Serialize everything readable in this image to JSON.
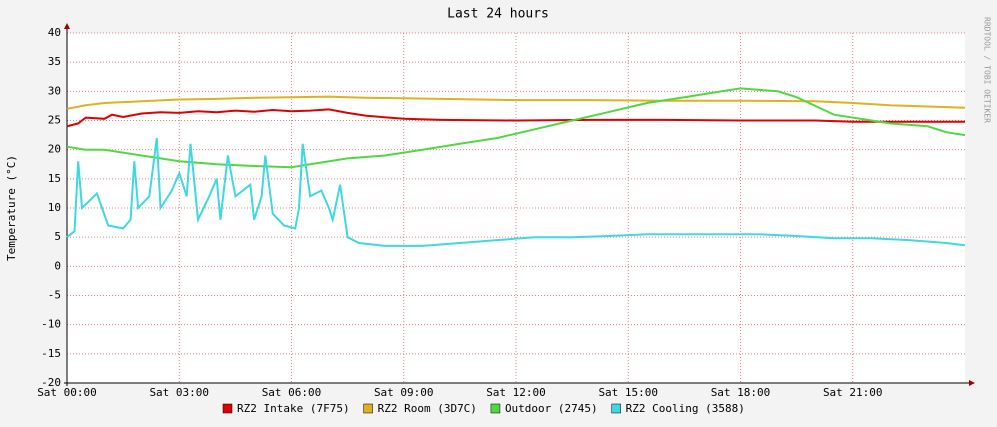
{
  "chart_data": {
    "type": "line",
    "title": "Last 24 hours",
    "y_label": "Temperature (°C)",
    "side_text": "RRDTOOL / TOBI OETIKER",
    "xlim": [
      0,
      24
    ],
    "ylim": [
      -20,
      40
    ],
    "xticks": [
      {
        "value": 0,
        "label": "Sat 00:00"
      },
      {
        "value": 3,
        "label": "Sat 03:00"
      },
      {
        "value": 6,
        "label": "Sat 06:00"
      },
      {
        "value": 9,
        "label": "Sat 09:00"
      },
      {
        "value": 12,
        "label": "Sat 12:00"
      },
      {
        "value": 15,
        "label": "Sat 15:00"
      },
      {
        "value": 18,
        "label": "Sat 18:00"
      },
      {
        "value": 21,
        "label": "Sat 21:00"
      }
    ],
    "yticks": [
      -20,
      -15,
      -10,
      -5,
      0,
      5,
      10,
      15,
      20,
      25,
      30,
      35,
      40
    ],
    "grid": true,
    "series": [
      {
        "name": "RZ2 Intake (7F75)",
        "color": "#e00000",
        "x": [
          0,
          0.3,
          0.5,
          1,
          1.2,
          1.5,
          2,
          2.5,
          3,
          3.5,
          4,
          4.5,
          5,
          5.5,
          6,
          6.5,
          7,
          7.5,
          8,
          9,
          10,
          12,
          14,
          16,
          18,
          20,
          21,
          22,
          23,
          24
        ],
        "values": [
          24,
          24.5,
          25.5,
          25.3,
          26,
          25.6,
          26.2,
          26.4,
          26.3,
          26.6,
          26.4,
          26.7,
          26.5,
          26.8,
          26.6,
          26.7,
          26.9,
          26.3,
          25.8,
          25.3,
          25.1,
          25,
          25.1,
          25.1,
          25,
          25,
          24.8,
          24.8,
          24.8,
          24.8
        ]
      },
      {
        "name": "RZ2 Room (3D7C)",
        "color": "#e0b020",
        "x": [
          0,
          0.5,
          1,
          2,
          3,
          4,
          5,
          6,
          7,
          7.5,
          8,
          9,
          10,
          12,
          14,
          16,
          18,
          20,
          21,
          22,
          23,
          24
        ],
        "values": [
          27,
          27.6,
          28,
          28.3,
          28.6,
          28.7,
          28.9,
          29,
          29.1,
          29,
          28.9,
          28.8,
          28.7,
          28.5,
          28.5,
          28.4,
          28.4,
          28.3,
          28,
          27.6,
          27.4,
          27.2
        ]
      },
      {
        "name": "Outdoor (2745)",
        "color": "#50d840",
        "x": [
          0,
          0.5,
          1,
          1.5,
          2,
          3,
          4,
          5,
          6,
          6.5,
          7.5,
          8.5,
          9.5,
          10.5,
          11.5,
          12.5,
          13.5,
          14.5,
          15.5,
          16.5,
          17.5,
          18,
          19,
          19.5,
          20,
          20.5,
          21.5,
          22,
          23,
          23.5,
          24
        ],
        "values": [
          20.5,
          20,
          20,
          19.5,
          19,
          18,
          17.5,
          17.2,
          17,
          17.5,
          18.5,
          19,
          20,
          21,
          22,
          23.5,
          25,
          26.5,
          28,
          29,
          30,
          30.5,
          30,
          29,
          27.5,
          26,
          25,
          24.5,
          24,
          23,
          22.5
        ]
      },
      {
        "name": "RZ2 Cooling (3588)",
        "color": "#40d8e0",
        "x": [
          0,
          0.2,
          0.3,
          0.4,
          0.8,
          1.1,
          1.5,
          1.7,
          1.8,
          1.9,
          2.2,
          2.4,
          2.5,
          2.8,
          3.0,
          3.2,
          3.3,
          3.5,
          3.8,
          4.0,
          4.1,
          4.3,
          4.5,
          4.9,
          5.0,
          5.2,
          5.3,
          5.5,
          5.8,
          6.1,
          6.2,
          6.3,
          6.5,
          6.8,
          7.0,
          7.1,
          7.3,
          7.5,
          7.8,
          8.5,
          9.5,
          10.5,
          11.5,
          12.5,
          13.5,
          14.5,
          15.5,
          16.5,
          17.5,
          18.5,
          19.5,
          20.5,
          21.5,
          22.5,
          23.5,
          24
        ],
        "values": [
          5,
          6,
          18,
          10,
          12.5,
          7,
          6.5,
          8,
          18,
          10,
          12,
          22,
          10,
          13,
          16,
          12,
          21,
          8,
          12,
          15,
          8,
          19,
          12,
          14,
          8,
          12,
          19,
          9,
          7,
          6.5,
          10,
          21,
          12,
          13,
          10,
          8,
          14,
          5,
          4,
          3.5,
          3.5,
          4,
          4.5,
          5,
          5,
          5.2,
          5.5,
          5.5,
          5.5,
          5.5,
          5.2,
          4.8,
          4.8,
          4.5,
          4,
          3.6
        ]
      }
    ]
  }
}
